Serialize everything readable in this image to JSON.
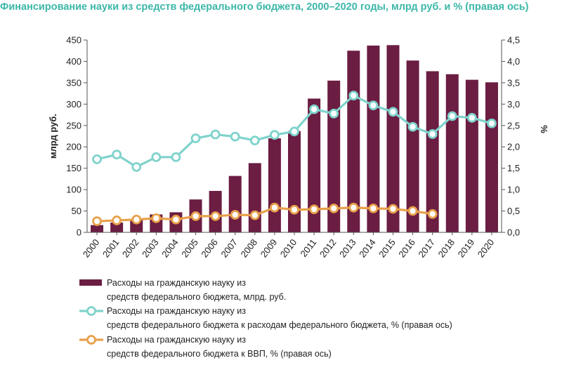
{
  "chart_data": {
    "type": "bar",
    "title": "Финансирование науки из средств федерального бюджета, 2000–2020 годы, млрд руб. и % (правая ось)",
    "categories": [
      "2000",
      "2001",
      "2002",
      "2003",
      "2004",
      "2005",
      "2006",
      "2007",
      "2008",
      "2009",
      "2010",
      "2011",
      "2012",
      "2013",
      "2014",
      "2015",
      "2016",
      "2017",
      "2018",
      "2019",
      "2020"
    ],
    "ylabel": "млрд руб.",
    "ylabel_right": "%",
    "ylim": [
      0,
      450
    ],
    "ylim_right": [
      0,
      4.5
    ],
    "yticks": [
      "0",
      "50",
      "100",
      "150",
      "200",
      "250",
      "300",
      "350",
      "400",
      "450"
    ],
    "yticks_right": [
      "0,0",
      "0,5",
      "1,0",
      "1,5",
      "2,0",
      "2,5",
      "3,0",
      "3,5",
      "4,0",
      "4,5"
    ],
    "grid": false,
    "series": [
      {
        "name": "bars",
        "kind": "bar",
        "axis": "left",
        "color": "#6b1d42",
        "legend": [
          "Расходы  на гражданскую науку из",
          "средств федерального бюджета, млрд. руб."
        ],
        "values": [
          17,
          23,
          31,
          42,
          47,
          77,
          97,
          132,
          162,
          220,
          237,
          313,
          355,
          425,
          437,
          438,
          402,
          377,
          370,
          357,
          351
        ]
      },
      {
        "name": "share_of_budget",
        "kind": "line",
        "axis": "right",
        "color": "#7fd3cc",
        "legend": [
          "Расходы  на гражданскую науку из",
          "средств федерального бюджета к расходам федерального бюджета, % (правая ось)"
        ],
        "values": [
          1.71,
          1.82,
          1.53,
          1.76,
          1.76,
          2.2,
          2.29,
          2.24,
          2.15,
          2.28,
          2.36,
          2.88,
          2.78,
          3.2,
          2.97,
          2.82,
          2.47,
          2.3,
          2.72,
          2.68,
          2.55
        ]
      },
      {
        "name": "share_of_gdp",
        "kind": "line",
        "axis": "right",
        "color": "#e8a04a",
        "legend": [
          "Расходы  на гражданскую науку из",
          "средств федерального бюджета к ВВП, % (правая ось)"
        ],
        "values": [
          0.26,
          0.28,
          0.3,
          0.33,
          0.3,
          0.38,
          0.38,
          0.41,
          0.4,
          0.58,
          0.53,
          0.54,
          0.56,
          0.58,
          0.56,
          0.55,
          0.5,
          0.43,
          null,
          null,
          null
        ]
      }
    ]
  }
}
